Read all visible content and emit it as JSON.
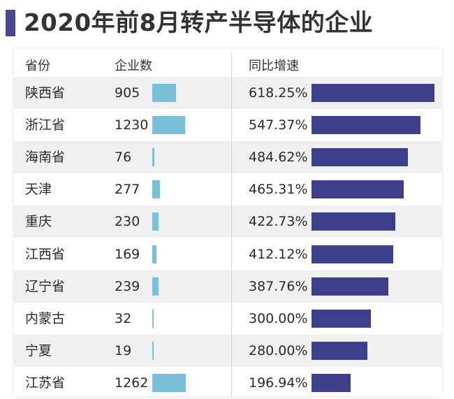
{
  "title": "2020年前8月转产半导体的企业",
  "headers": {
    "province": "省份",
    "count": "企业数",
    "growth": "同比增速"
  },
  "colors": {
    "count_bar": "#7ac0d9",
    "growth_bar": "#3d3f8c",
    "title_accent": "#4a4893"
  },
  "chart_data": {
    "type": "table",
    "title": "2020年前8月转产半导体的企业",
    "columns": [
      "省份",
      "企业数",
      "同比增速"
    ],
    "rows": [
      {
        "province": "陕西省",
        "count": 905,
        "growth": 618.25,
        "growth_label": "618.25%"
      },
      {
        "province": "浙江省",
        "count": 1230,
        "growth": 547.37,
        "growth_label": "547.37%"
      },
      {
        "province": "海南省",
        "count": 76,
        "growth": 484.62,
        "growth_label": "484.62%"
      },
      {
        "province": "天津",
        "count": 277,
        "growth": 465.31,
        "growth_label": "465.31%"
      },
      {
        "province": "重庆",
        "count": 230,
        "growth": 422.73,
        "growth_label": "422.73%"
      },
      {
        "province": "江西省",
        "count": 169,
        "growth": 412.12,
        "growth_label": "412.12%"
      },
      {
        "province": "辽宁省",
        "count": 239,
        "growth": 387.76,
        "growth_label": "387.76%"
      },
      {
        "province": "内蒙古",
        "count": 32,
        "growth": 300.0,
        "growth_label": "300.00%"
      },
      {
        "province": "宁夏",
        "count": 19,
        "growth": 280.0,
        "growth_label": "280.00%"
      },
      {
        "province": "江苏省",
        "count": 1262,
        "growth": 196.94,
        "growth_label": "196.94%"
      }
    ]
  }
}
